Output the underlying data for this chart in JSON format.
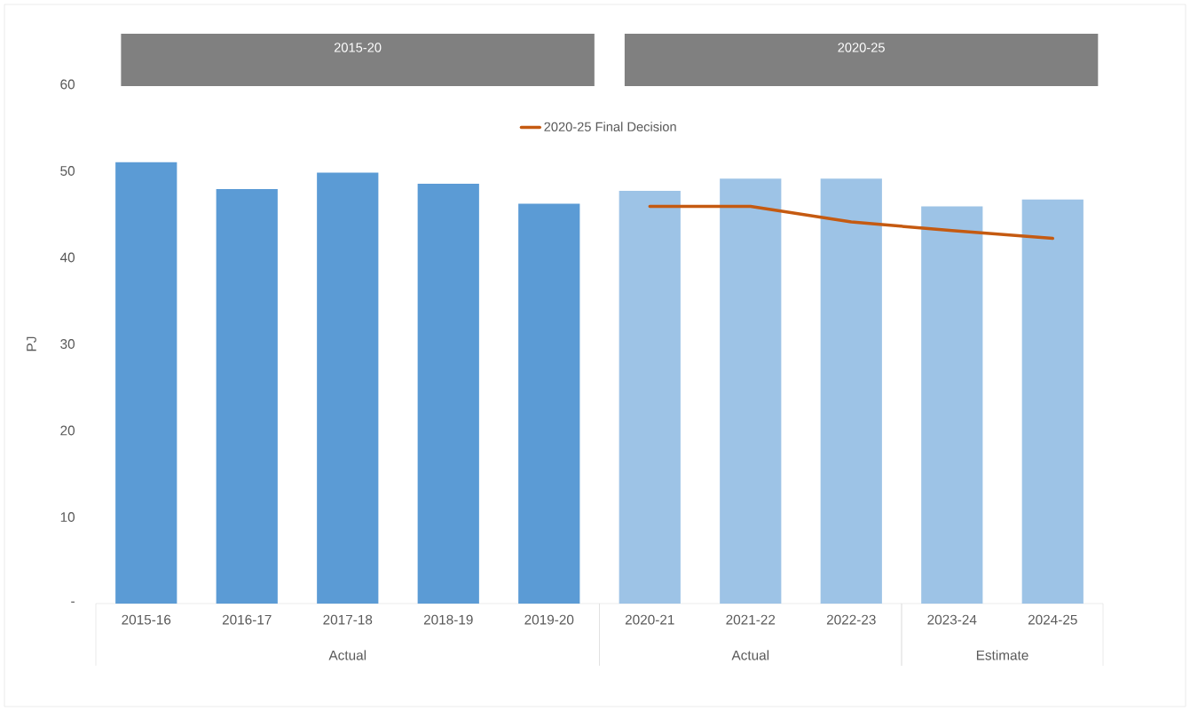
{
  "chart_data": {
    "type": "bar",
    "ylabel": "PJ",
    "categories": [
      "2015-16",
      "2016-17",
      "2017-18",
      "2018-19",
      "2019-20",
      "2020-21",
      "2021-22",
      "2022-23",
      "2023-24",
      "2024-25"
    ],
    "series": [
      {
        "colors": [
          "#5b9bd5",
          "#5b9bd5",
          "#5b9bd5",
          "#5b9bd5",
          "#5b9bd5",
          "#9dc3e6",
          "#9dc3e6",
          "#9dc3e6",
          "#9dc3e6",
          "#9dc3e6"
        ],
        "values": [
          51.0,
          47.9,
          49.8,
          48.5,
          46.2,
          47.7,
          49.1,
          49.1,
          45.9,
          46.7
        ]
      },
      {
        "type": "line",
        "name": "2020-25 Final Decision",
        "color": "#c55a11",
        "values": [
          null,
          null,
          null,
          null,
          null,
          45.9,
          45.9,
          44.1,
          43.1,
          42.2
        ]
      }
    ],
    "ylim": [
      0,
      60
    ],
    "yticks": [
      {
        "value": 0,
        "label": "-"
      },
      10,
      20,
      30,
      40,
      50,
      60
    ],
    "legend": "top",
    "grid": false,
    "line_style": "solid",
    "marker": "none",
    "annotations": [
      "2015-20",
      "2020-25",
      "Actual",
      "Actual",
      "Estimate"
    ]
  }
}
